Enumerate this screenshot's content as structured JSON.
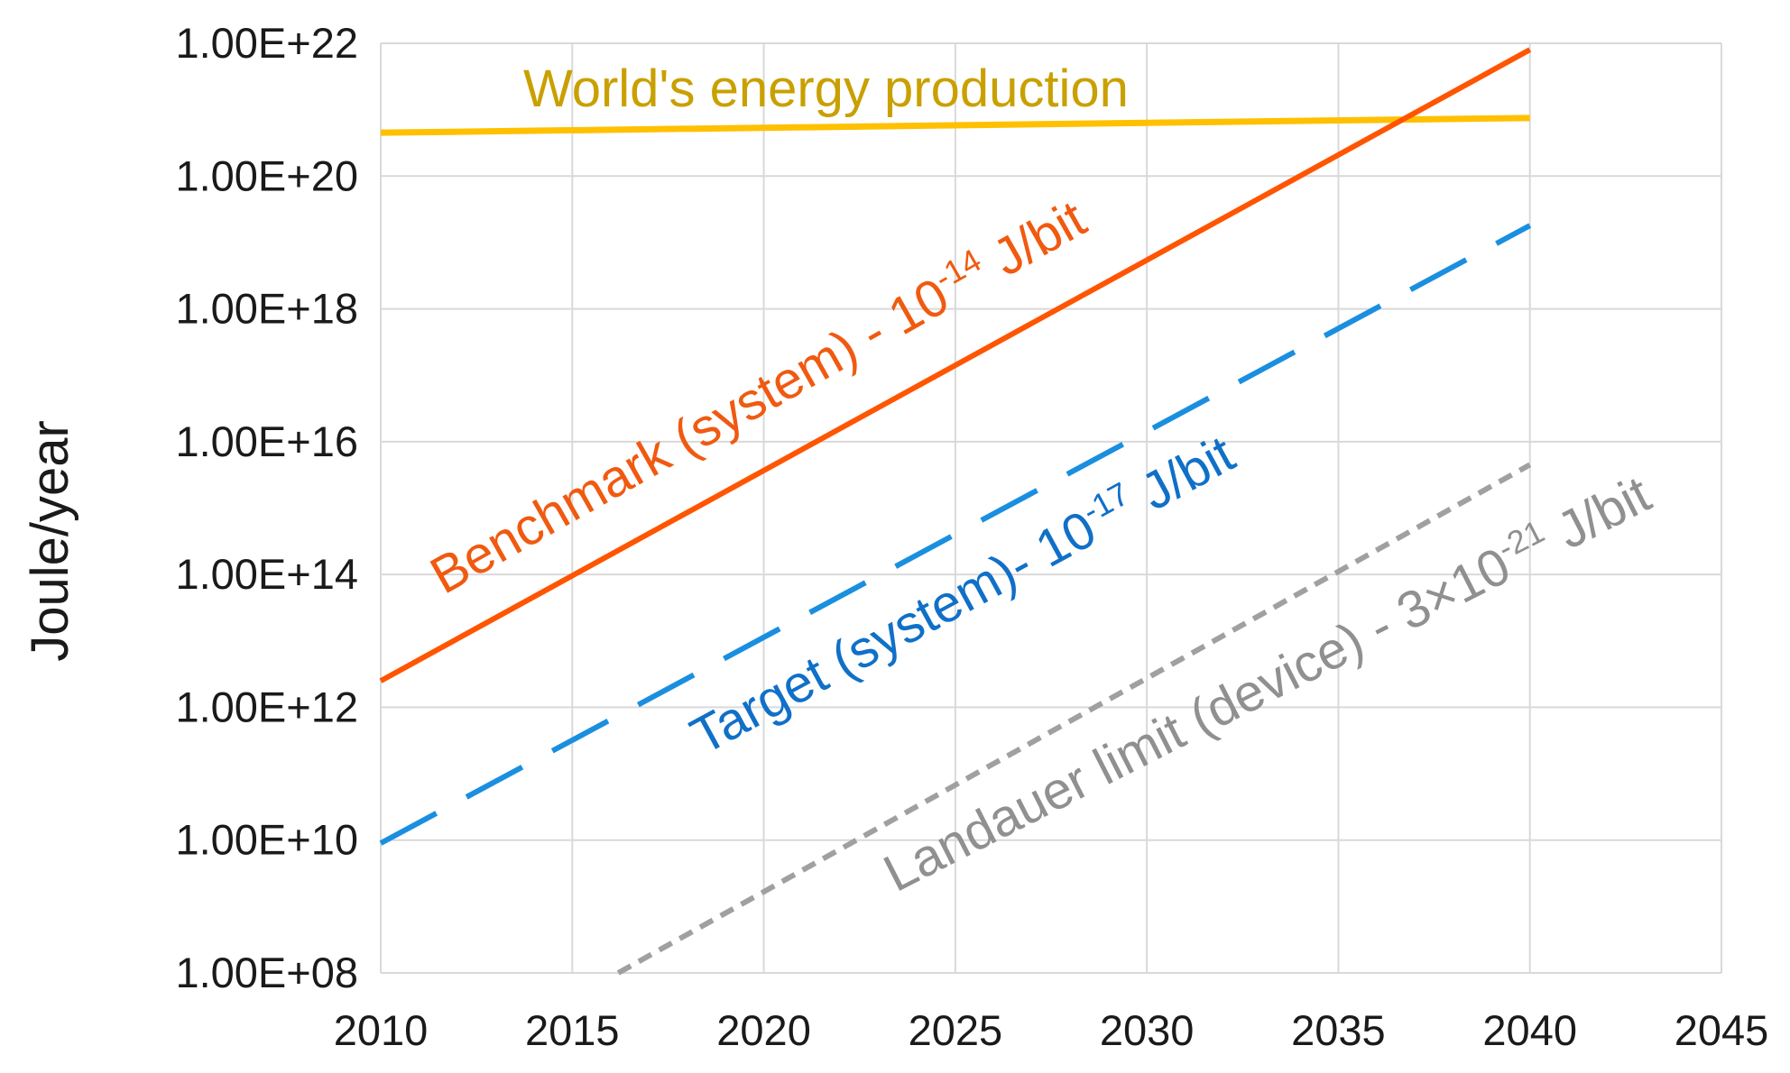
{
  "chart_data": {
    "type": "line",
    "ylabel": "Joule/year",
    "y_scale": "log",
    "ylim": [
      100000000.0,
      1e+22
    ],
    "xlim": [
      2010,
      2045
    ],
    "grid": true,
    "legend": "none",
    "x_ticks": [
      "2010",
      "2015",
      "2020",
      "2025",
      "2030",
      "2035",
      "2040",
      "2045"
    ],
    "y_ticks": [
      "1.00E+08",
      "1.00E+10",
      "1.00E+12",
      "1.00E+14",
      "1.00E+16",
      "1.00E+18",
      "1.00E+20",
      "1.00E+22"
    ],
    "series": [
      {
        "x": [
          2010,
          2040
        ],
        "y": [
          4.5e+20,
          7.5e+20
        ],
        "color": "#FFC000",
        "style": "solid",
        "label_parts": [
          {
            "t": "World's energy production"
          }
        ],
        "label_color": "#C9A000"
      },
      {
        "x": [
          2010,
          2040
        ],
        "y": [
          2500000000000.0,
          8e+21
        ],
        "color": "#FF5500",
        "style": "solid",
        "label_parts": [
          {
            "t": "Benchmark (system) - 10"
          },
          {
            "t": "-14",
            "sup": true
          },
          {
            "t": " J/bit"
          }
        ],
        "label_color": "#F05A10"
      },
      {
        "x": [
          2010,
          2040
        ],
        "y": [
          9000000000.0,
          1.8e+19
        ],
        "color": "#1A8FE0",
        "style": "dashed",
        "label_parts": [
          {
            "t": "Target (system)- 10"
          },
          {
            "t": "-17",
            "sup": true
          },
          {
            "t": " J/bit"
          }
        ],
        "label_color": "#1070C8"
      },
      {
        "x": [
          2016.2,
          2040
        ],
        "y": [
          100000000.0,
          4500000000000000.0
        ],
        "color": "#A0A0A0",
        "style": "dotted",
        "label_parts": [
          {
            "t": "Landauer limit (device) - 3×10"
          },
          {
            "t": "-21",
            "sup": true
          },
          {
            "t": " J/bit"
          }
        ],
        "label_color": "#909090"
      }
    ]
  }
}
